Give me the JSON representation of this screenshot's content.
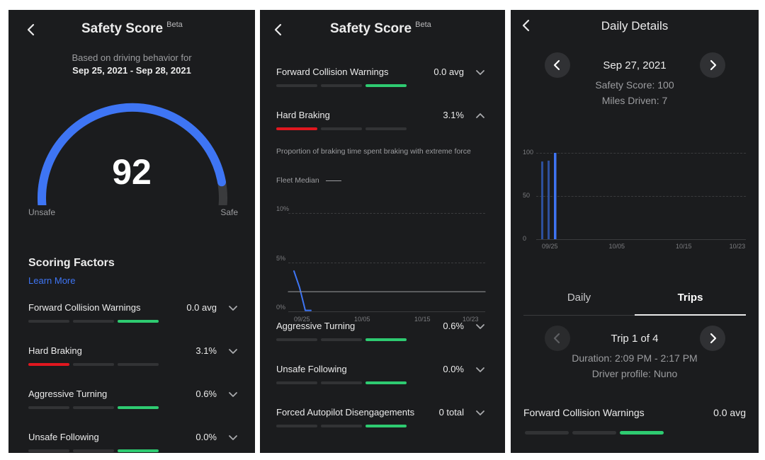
{
  "panel1": {
    "title": "Safety Score",
    "beta": "Beta",
    "subtitle": "Based on driving behavior for",
    "date_range": "Sep 25, 2021 - Sep 28, 2021",
    "score": "92",
    "gauge_fraction": 0.92,
    "label_unsafe": "Unsafe",
    "label_safe": "Safe",
    "section_title": "Scoring Factors",
    "learn_more": "Learn More",
    "factors": [
      {
        "name": "Forward Collision Warnings",
        "value": "0.0 avg",
        "level": "green"
      },
      {
        "name": "Hard Braking",
        "value": "3.1%",
        "level": "red"
      },
      {
        "name": "Aggressive Turning",
        "value": "0.6%",
        "level": "green"
      },
      {
        "name": "Unsafe Following",
        "value": "0.0%",
        "level": "green"
      }
    ]
  },
  "panel2": {
    "title": "Safety Score",
    "beta": "Beta",
    "factors": [
      {
        "name": "Forward Collision Warnings",
        "value": "0.0 avg",
        "level": "green"
      },
      {
        "name": "Hard Braking",
        "value": "3.1%",
        "level": "red"
      },
      {
        "name": "Aggressive Turning",
        "value": "0.6%",
        "level": "green"
      },
      {
        "name": "Unsafe Following",
        "value": "0.0%",
        "level": "green"
      },
      {
        "name": "Forced Autopilot Disengagements",
        "value": "0 total",
        "level": "green"
      }
    ],
    "description": "Proportion of braking time spent braking with extreme force",
    "legend": "Fleet Median"
  },
  "panel3": {
    "title": "Daily Details",
    "date": "Sep 27, 2021",
    "safety_score": "Safety Score: 100",
    "miles_driven": "Miles Driven: 7",
    "tabs": [
      "Daily",
      "Trips"
    ],
    "active_tab": "Trips",
    "trip_label": "Trip 1 of 4",
    "duration": "Duration: 2:09 PM - 2:17 PM",
    "driver": "Driver profile: Nuno",
    "factor_name": "Forward Collision Warnings",
    "factor_value": "0.0 avg"
  },
  "chart_data": [
    {
      "type": "line",
      "x_ticks": [
        "09/25",
        "10/05",
        "10/15",
        "10/23"
      ],
      "y_ticks": [
        "10%",
        "5%",
        "0%"
      ],
      "ylim": [
        0,
        10
      ],
      "series": [
        {
          "name": "",
          "x": [
            "09/25",
            "09/26",
            "09/27",
            "09/28"
          ],
          "values": [
            4.1,
            2.4,
            0.1,
            0.1
          ]
        },
        {
          "name": "Fleet Median",
          "x": [
            "09/25",
            "10/23"
          ],
          "values": [
            2.0,
            2.0
          ]
        }
      ]
    },
    {
      "type": "bar",
      "x_ticks": [
        "09/25",
        "10/05",
        "10/15",
        "10/23"
      ],
      "y_ticks": [
        "100",
        "50",
        "0"
      ],
      "ylim": [
        0,
        100
      ],
      "categories": [
        "09/25",
        "09/26",
        "09/27"
      ],
      "values": [
        90,
        91,
        100
      ],
      "colors": {
        "bar": "#2d4f9c",
        "selected": "#3f74f2"
      },
      "selected": "09/27"
    }
  ],
  "colors": {
    "accent": "#3e75f4",
    "green": "#2ecb71",
    "red": "#e0171f",
    "track": "#323335",
    "background": "#1b1c1e"
  }
}
